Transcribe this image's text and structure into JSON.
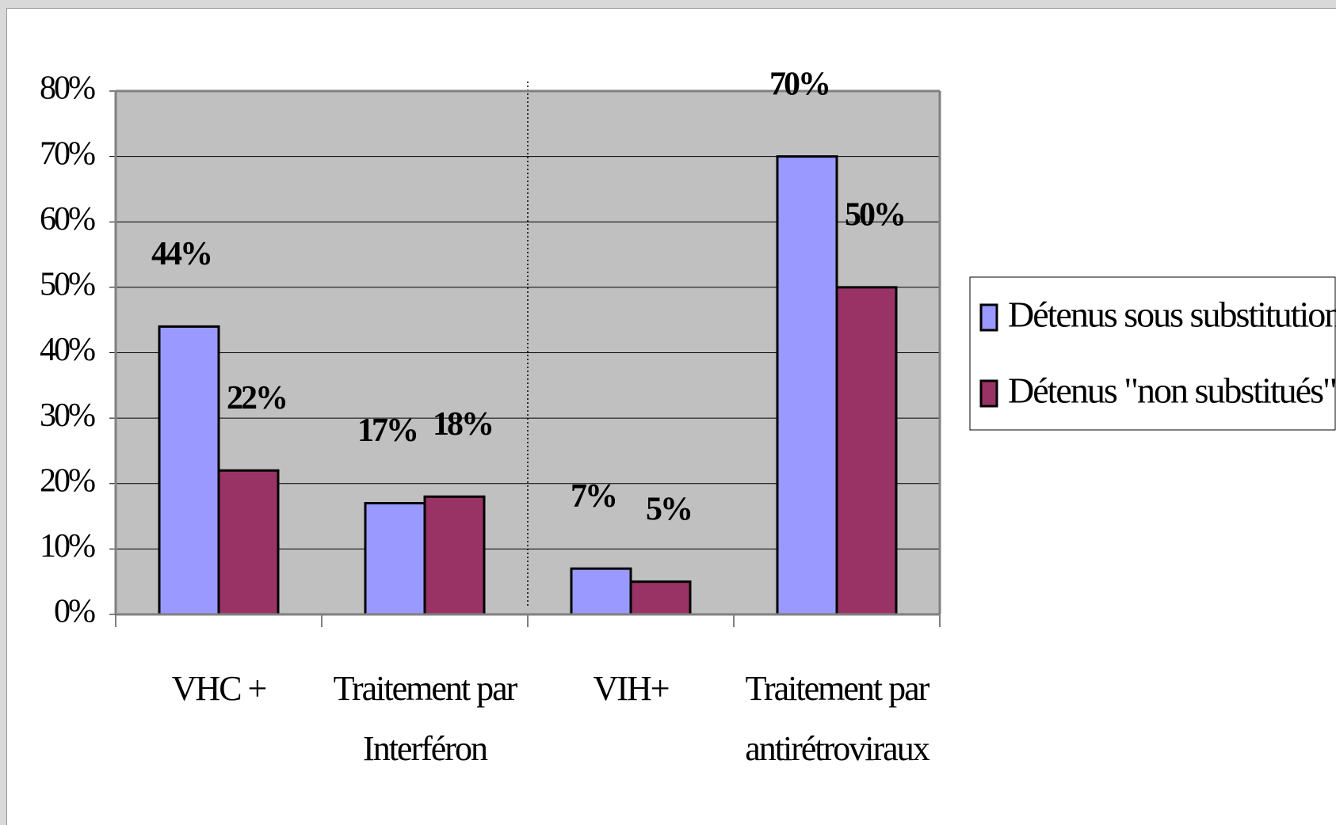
{
  "chart_data": {
    "type": "bar",
    "categories": [
      "VHC +",
      "Traitement par Interféron",
      "VIH+",
      "Traitement par antirétroviraux"
    ],
    "series": [
      {
        "name": "Détenus sous substitution",
        "color": "#9999ff",
        "values": [
          44,
          17,
          7,
          70
        ],
        "value_labels": [
          "44%",
          "17%",
          "7%",
          "70%"
        ]
      },
      {
        "name": "Détenus \"non substitués\"",
        "color": "#993366",
        "values": [
          22,
          18,
          5,
          50
        ],
        "value_labels": [
          "22%",
          "18%",
          "5%",
          "50%"
        ]
      }
    ],
    "ylim": [
      0,
      80
    ],
    "yticks": [
      {
        "value": 0,
        "label": "0%"
      },
      {
        "value": 10,
        "label": "10%"
      },
      {
        "value": 20,
        "label": "20%"
      },
      {
        "value": 30,
        "label": "30%"
      },
      {
        "value": 40,
        "label": "40%"
      },
      {
        "value": 50,
        "label": "50%"
      },
      {
        "value": 60,
        "label": "60%"
      },
      {
        "value": 70,
        "label": "70%"
      },
      {
        "value": 80,
        "label": "80%"
      }
    ],
    "grid": true,
    "plot_background": "#c0c0c0",
    "legend": "right"
  }
}
